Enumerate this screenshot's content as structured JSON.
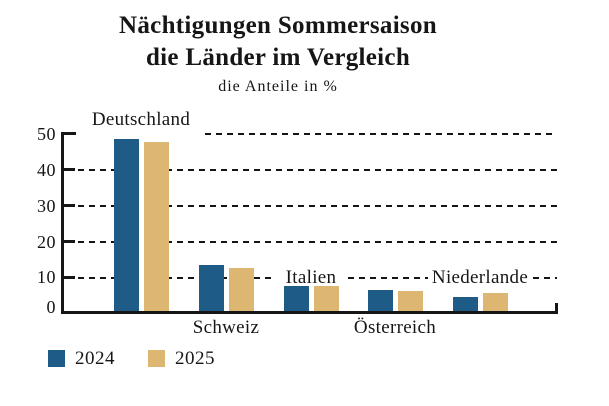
{
  "title": {
    "line1": "Nächtigungen Sommersaison",
    "line2": "die Länder im Vergleich",
    "subtitle": "die Anteile in %"
  },
  "y_axis": {
    "tick_labels": [
      "50",
      "40",
      "30",
      "20",
      "10",
      "0"
    ]
  },
  "legend": {
    "items": [
      {
        "label": "2024",
        "color": "#1e5b87"
      },
      {
        "label": "2025",
        "color": "#ddb671"
      }
    ]
  },
  "colors": {
    "bar_2024": "#1e5b87",
    "bar_2025": "#ddb671",
    "axis": "#161616",
    "background": "#ffffff"
  },
  "chart_data": {
    "type": "bar",
    "categories": [
      "Deutschland",
      "Schweiz",
      "Italien",
      "Österreich",
      "Niederlande"
    ],
    "series": [
      {
        "name": "2024",
        "color": "#1e5b87",
        "values": [
          48.5,
          13,
          7,
          6,
          4
        ]
      },
      {
        "name": "2025",
        "color": "#ddb671",
        "values": [
          47.5,
          12,
          7,
          5.5,
          5
        ]
      }
    ],
    "title": "Nächtigungen Sommersaison – die Länder im Vergleich",
    "subtitle": "die Anteile in %",
    "xlabel": "",
    "ylabel": "Anteile in %",
    "ylim": [
      0,
      50
    ],
    "y_ticks": [
      0,
      10,
      20,
      30,
      40,
      50
    ],
    "grid": "horizontal dashed lines at each 10",
    "legend_position": "bottom-left"
  }
}
